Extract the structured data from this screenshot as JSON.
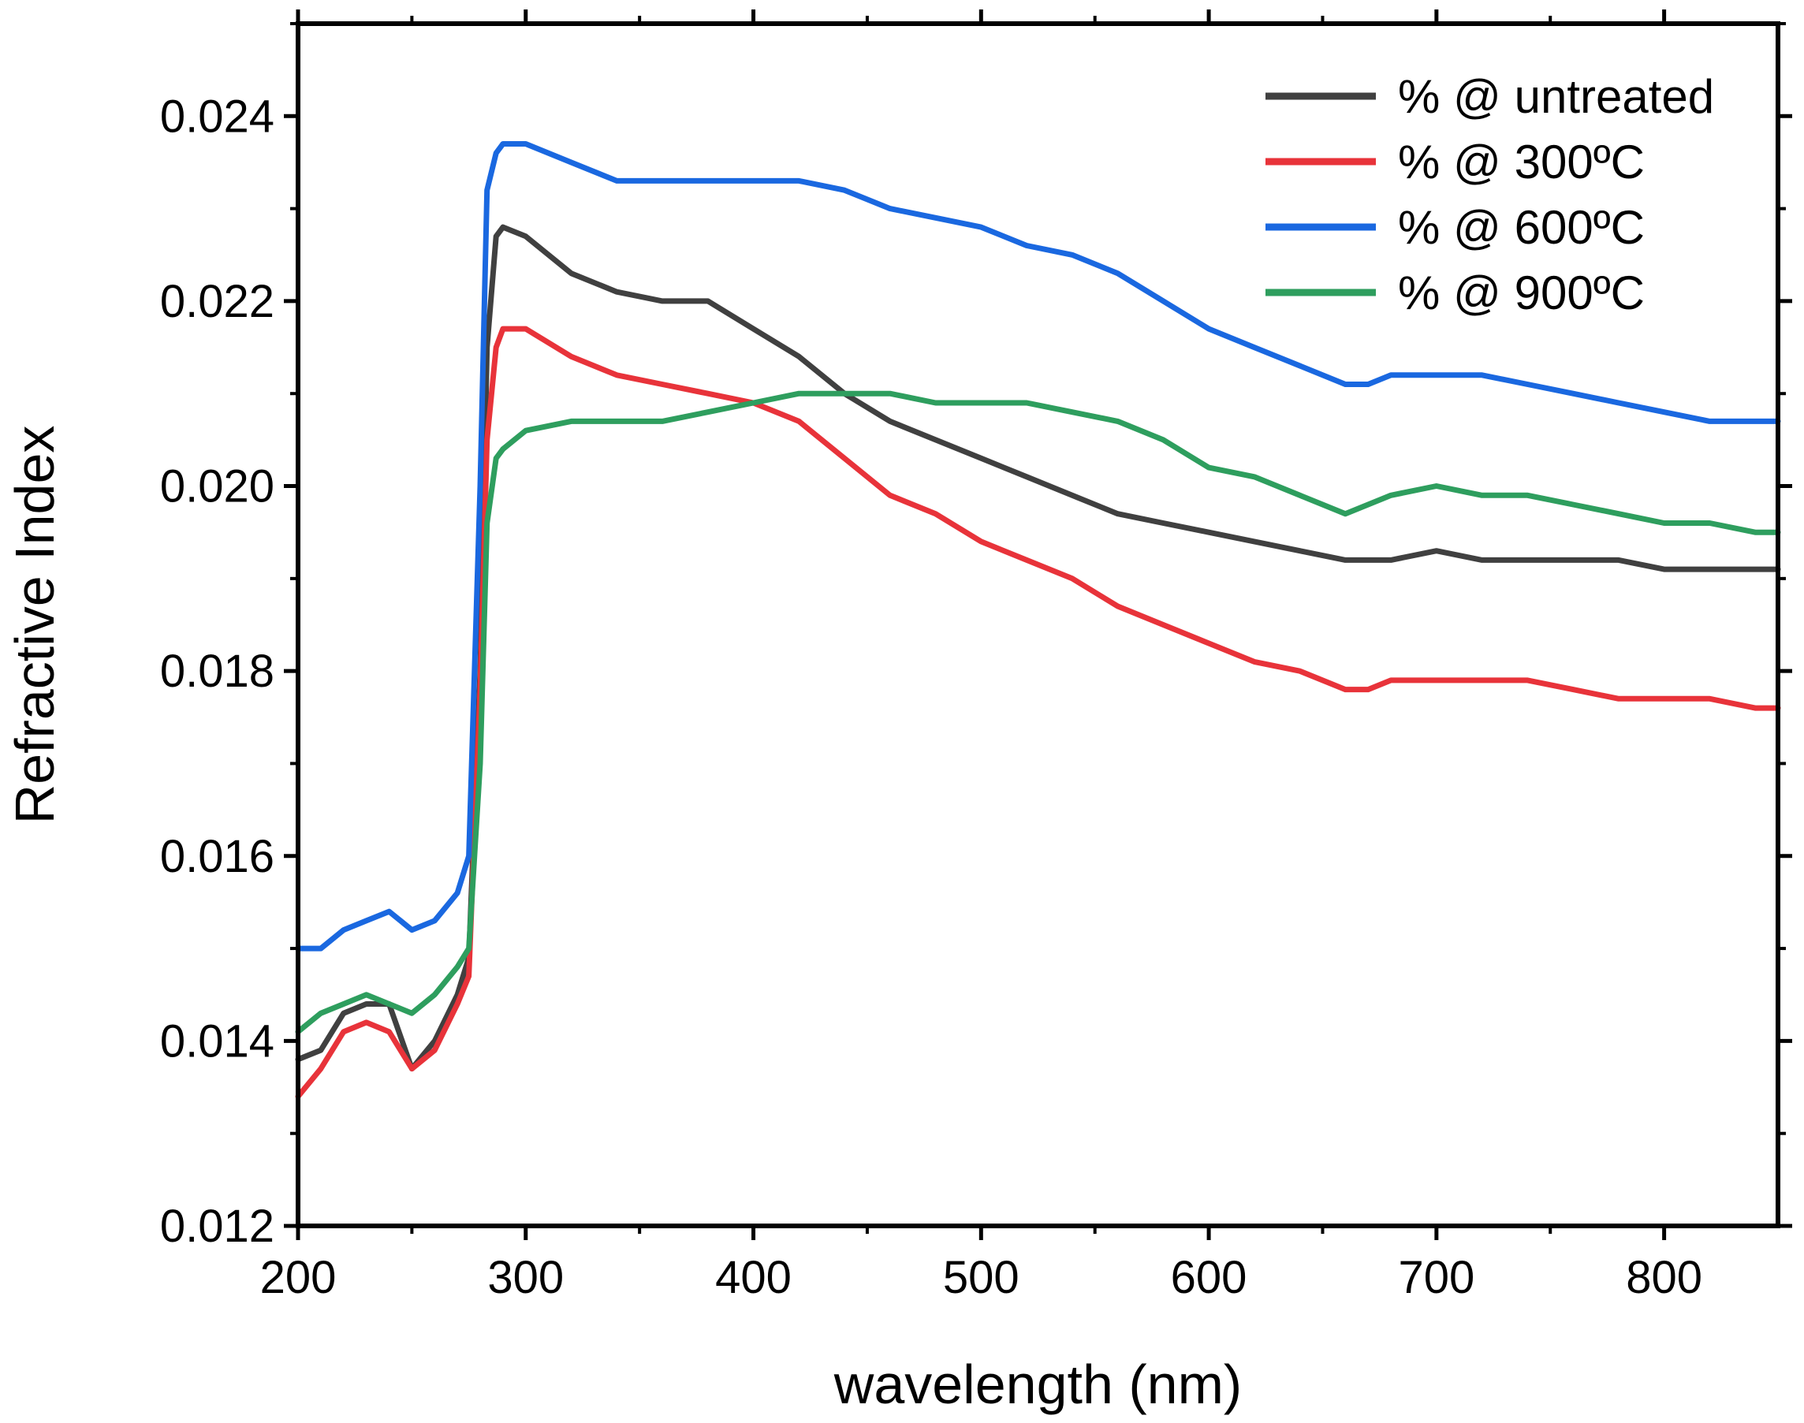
{
  "chart_data": {
    "type": "line",
    "title": "",
    "xlabel": "wavelength (nm)",
    "ylabel": "Refractive Index",
    "xlim": [
      200,
      850
    ],
    "ylim": [
      0.012,
      0.025
    ],
    "xticks": [
      200,
      300,
      400,
      500,
      600,
      700,
      800
    ],
    "xtick_labels": [
      "200",
      "300",
      "400",
      "500",
      "600",
      "700",
      "800"
    ],
    "yticks": [
      0.012,
      0.014,
      0.016,
      0.018,
      0.02,
      0.022,
      0.024
    ],
    "ytick_labels": [
      "0.012",
      "0.014",
      "0.016",
      "0.018",
      "0.020",
      "0.022",
      "0.024"
    ],
    "grid": false,
    "legend_position": "top-right",
    "x": [
      200,
      210,
      220,
      230,
      240,
      250,
      260,
      270,
      275,
      280,
      283,
      287,
      290,
      300,
      320,
      340,
      360,
      380,
      400,
      420,
      440,
      460,
      480,
      500,
      520,
      540,
      560,
      580,
      600,
      620,
      640,
      660,
      670,
      680,
      700,
      720,
      740,
      760,
      780,
      800,
      820,
      840,
      850
    ],
    "series": [
      {
        "name": "% @ untreated",
        "color": "#404040",
        "values": [
          0.0138,
          0.0139,
          0.0143,
          0.0144,
          0.0144,
          0.0137,
          0.014,
          0.0145,
          0.0149,
          0.018,
          0.0215,
          0.0227,
          0.0228,
          0.0227,
          0.0223,
          0.0221,
          0.022,
          0.022,
          0.0217,
          0.0214,
          0.021,
          0.0207,
          0.0205,
          0.0203,
          0.0201,
          0.0199,
          0.0197,
          0.0196,
          0.0195,
          0.0194,
          0.0193,
          0.0192,
          0.0192,
          0.0192,
          0.0193,
          0.0192,
          0.0192,
          0.0192,
          0.0192,
          0.0191,
          0.0191,
          0.0191,
          0.0191
        ]
      },
      {
        "name": "% @ 300ºC",
        "color": "#e8333a",
        "values": [
          0.0134,
          0.0137,
          0.0141,
          0.0142,
          0.0141,
          0.0137,
          0.0139,
          0.0144,
          0.0147,
          0.0178,
          0.0205,
          0.0215,
          0.0217,
          0.0217,
          0.0214,
          0.0212,
          0.0211,
          0.021,
          0.0209,
          0.0207,
          0.0203,
          0.0199,
          0.0197,
          0.0194,
          0.0192,
          0.019,
          0.0187,
          0.0185,
          0.0183,
          0.0181,
          0.018,
          0.0178,
          0.0178,
          0.0179,
          0.0179,
          0.0179,
          0.0179,
          0.0178,
          0.0177,
          0.0177,
          0.0177,
          0.0176,
          0.0176
        ]
      },
      {
        "name": "% @ 600ºC",
        "color": "#1a68e0",
        "values": [
          0.015,
          0.015,
          0.0152,
          0.0153,
          0.0154,
          0.0152,
          0.0153,
          0.0156,
          0.016,
          0.02,
          0.0232,
          0.0236,
          0.0237,
          0.0237,
          0.0235,
          0.0233,
          0.0233,
          0.0233,
          0.0233,
          0.0233,
          0.0232,
          0.023,
          0.0229,
          0.0228,
          0.0226,
          0.0225,
          0.0223,
          0.022,
          0.0217,
          0.0215,
          0.0213,
          0.0211,
          0.0211,
          0.0212,
          0.0212,
          0.0212,
          0.0211,
          0.021,
          0.0209,
          0.0208,
          0.0207,
          0.0207,
          0.0207
        ]
      },
      {
        "name": "% @ 900ºC",
        "color": "#2e9e5e",
        "values": [
          0.0141,
          0.0143,
          0.0144,
          0.0145,
          0.0144,
          0.0143,
          0.0145,
          0.0148,
          0.015,
          0.017,
          0.0196,
          0.0203,
          0.0204,
          0.0206,
          0.0207,
          0.0207,
          0.0207,
          0.0208,
          0.0209,
          0.021,
          0.021,
          0.021,
          0.0209,
          0.0209,
          0.0209,
          0.0208,
          0.0207,
          0.0205,
          0.0202,
          0.0201,
          0.0199,
          0.0197,
          0.0198,
          0.0199,
          0.02,
          0.0199,
          0.0199,
          0.0198,
          0.0197,
          0.0196,
          0.0196,
          0.0195,
          0.0195
        ]
      }
    ]
  }
}
